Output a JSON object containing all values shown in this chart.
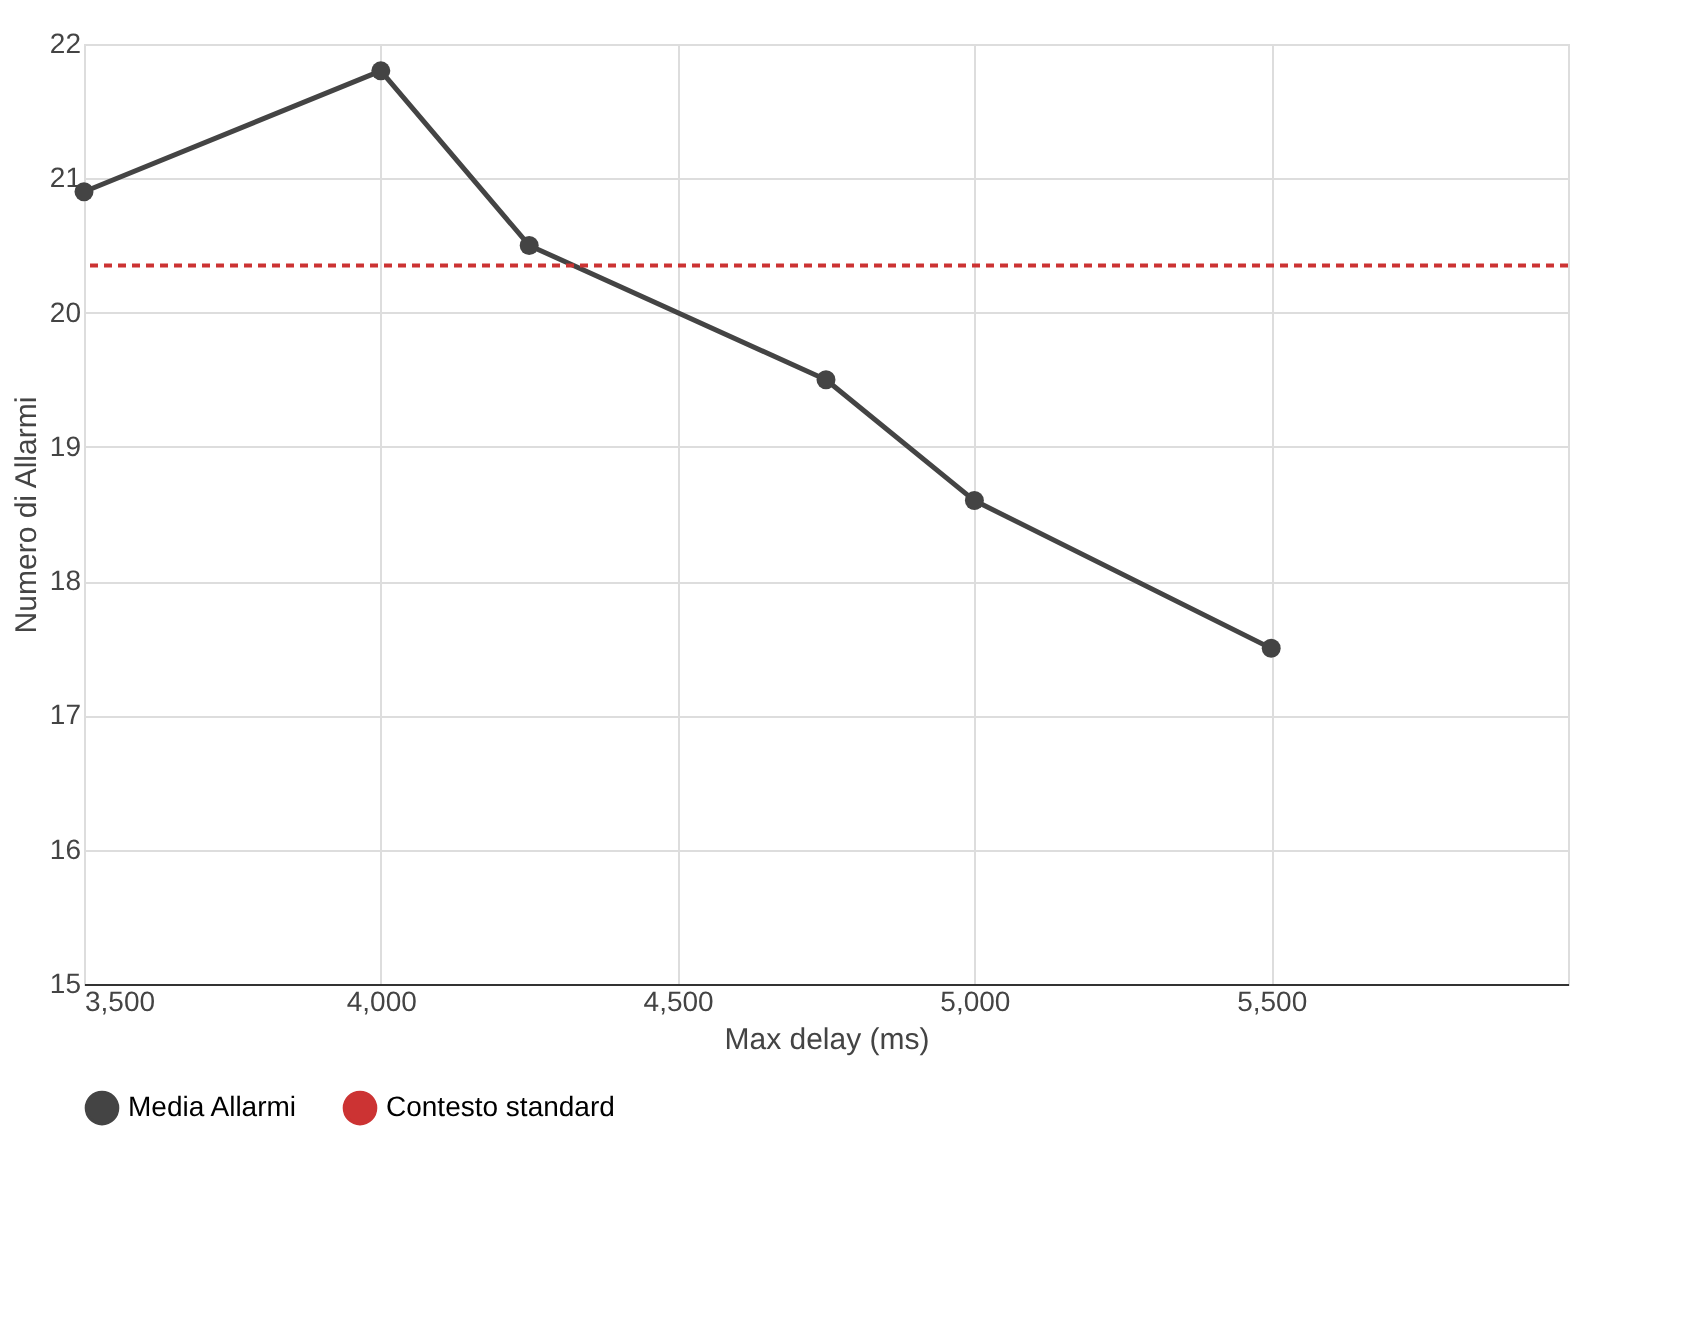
{
  "chart_data": {
    "type": "line",
    "xlabel": "Max delay (ms)",
    "ylabel": "Numero di Allarmi",
    "x": [
      3500,
      4000,
      4250,
      4750,
      5000,
      5500
    ],
    "series": [
      {
        "name": "Media Allarmi",
        "color": "#444444",
        "values": [
          20.9,
          21.8,
          20.5,
          19.5,
          18.6,
          17.5
        ]
      }
    ],
    "ref_lines": [
      {
        "axis": "y",
        "value": 20.35,
        "label": "Contesto standard",
        "color": "#cc3333",
        "line_style": "dashed"
      }
    ],
    "xlim": [
      3500,
      6000
    ],
    "xticks": [
      {
        "value": 3500,
        "label": "3,500"
      },
      {
        "value": 4000,
        "label": "4,000"
      },
      {
        "value": 4500,
        "label": "4,500"
      },
      {
        "value": 5000,
        "label": "5,000"
      },
      {
        "value": 5500,
        "label": "5,500"
      }
    ],
    "ylim": [
      15,
      22
    ],
    "yticks": [
      15,
      16,
      17,
      18,
      19,
      20,
      21,
      22
    ],
    "grid": true,
    "legend": "bottom",
    "marker": "circle",
    "line_style": "solid"
  }
}
